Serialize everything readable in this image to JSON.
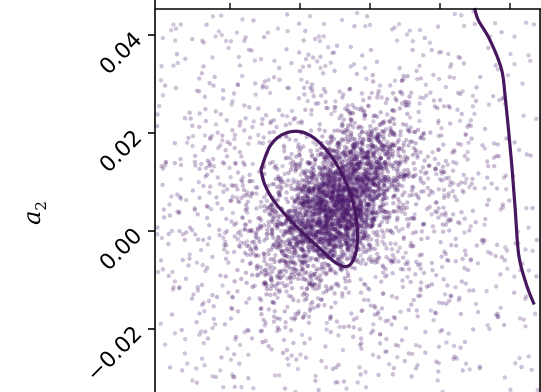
{
  "chart_data": {
    "type": "scatter",
    "ylabel": "a",
    "ylabel_subscript": "2",
    "ylim": [
      -0.032,
      0.046
    ],
    "yticks": [
      {
        "value": 0.04,
        "label": "0.04"
      },
      {
        "value": 0.02,
        "label": "0.02"
      },
      {
        "value": 0.0,
        "label": "0.00"
      },
      {
        "value": -0.02,
        "label": "−0.02"
      }
    ],
    "xlim": [
      0,
      1
    ],
    "scatter": {
      "color": "#4b1a6b",
      "opacity": 0.32,
      "cluster_center": {
        "x": 0.48,
        "y": 0.005
      },
      "description_of_spread": "dense 2D cloud centred near a2 = 0.005 with a diffuse halo"
    },
    "contours": [
      {
        "name": "",
        "color": "#46175f",
        "points": [
          [
            0.275,
            0.0125
          ],
          [
            0.3,
            0.0175
          ],
          [
            0.34,
            0.02
          ],
          [
            0.39,
            0.02
          ],
          [
            0.44,
            0.017
          ],
          [
            0.49,
            0.011
          ],
          [
            0.52,
            0.004
          ],
          [
            0.525,
            -0.003
          ],
          [
            0.505,
            -0.007
          ],
          [
            0.47,
            -0.0065
          ],
          [
            0.42,
            -0.003
          ],
          [
            0.36,
            0.0015
          ],
          [
            0.31,
            0.006
          ],
          [
            0.285,
            0.0095
          ],
          [
            0.275,
            0.0125
          ]
        ]
      },
      {
        "name": "",
        "color": "#46175f",
        "points": [
          [
            0.83,
            0.0455
          ],
          [
            0.84,
            0.043
          ],
          [
            0.87,
            0.039
          ],
          [
            0.9,
            0.033
          ],
          [
            0.91,
            0.027
          ],
          [
            0.925,
            0.015
          ],
          [
            0.935,
            0.005
          ],
          [
            0.945,
            -0.005
          ],
          [
            0.965,
            -0.011
          ],
          [
            0.985,
            -0.015
          ]
        ]
      }
    ]
  }
}
